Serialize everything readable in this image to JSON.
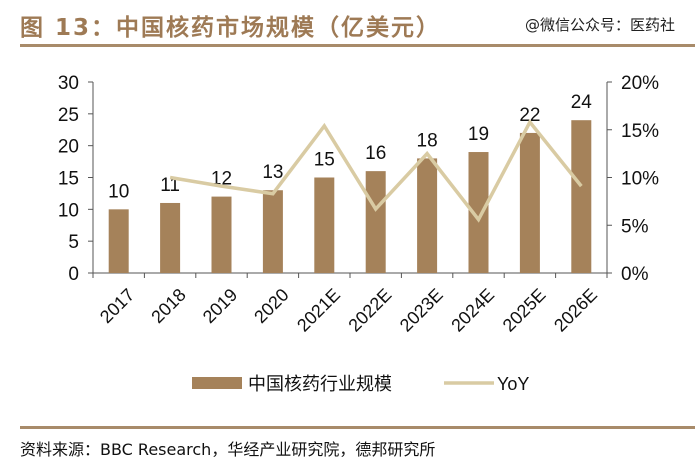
{
  "title": "图 13：中国核药市场规模（亿美元）",
  "watermark": "@微信公众号：医药社",
  "source": "资料来源：BBC Research，华经产业研究院，德邦研究所",
  "chart_data": {
    "type": "bar+line",
    "title": "图 13：中国核药市场规模（亿美元）",
    "categories": [
      "2017",
      "2018",
      "2019",
      "2020",
      "2021E",
      "2022E",
      "2023E",
      "2024E",
      "2025E",
      "2026E"
    ],
    "series": [
      {
        "name": "中国核药行业规模",
        "type": "bar",
        "axis": "left",
        "color": "#A5825A",
        "values": [
          10,
          11,
          12,
          13,
          15,
          16,
          18,
          19,
          22,
          24
        ]
      },
      {
        "name": "YoY",
        "type": "line",
        "axis": "right",
        "color": "#D9CBA3",
        "values": [
          null,
          10.0,
          9.1,
          8.3,
          15.4,
          6.7,
          12.5,
          5.6,
          15.8,
          9.1
        ]
      }
    ],
    "left_axis": {
      "range": [
        0,
        30
      ],
      "ticks": [
        "0",
        "5",
        "10",
        "15",
        "20",
        "25",
        "30"
      ]
    },
    "right_axis": {
      "range": [
        0,
        20
      ],
      "ticks": [
        "0%",
        "5%",
        "10%",
        "15%",
        "20%"
      ]
    },
    "grid": false,
    "legend_position": "bottom"
  }
}
